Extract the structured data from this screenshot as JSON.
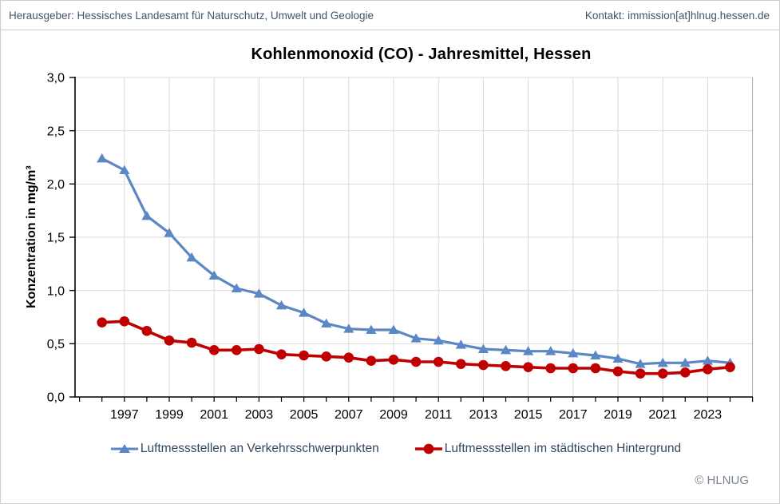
{
  "header": {
    "publisher": "Herausgeber: Hessisches Landesamt für Naturschutz, Umwelt und Geologie",
    "contact": "Kontakt: immission[at]hlnug.hessen.de"
  },
  "chart_data": {
    "type": "line",
    "title": "Kohlenmonoxid (CO) - Jahresmittel, Hessen",
    "xlabel": "",
    "ylabel": "Konzentration in mg/m³",
    "ylim": [
      0.0,
      3.0
    ],
    "ytick_step": 0.5,
    "ytick_labels": [
      "0,0",
      "0,5",
      "1,0",
      "1,5",
      "2,0",
      "2,5",
      "3,0"
    ],
    "x": [
      1996,
      1997,
      1998,
      1999,
      2000,
      2001,
      2002,
      2003,
      2004,
      2005,
      2006,
      2007,
      2008,
      2009,
      2010,
      2011,
      2012,
      2013,
      2014,
      2015,
      2016,
      2017,
      2018,
      2019,
      2020,
      2021,
      2022,
      2023,
      2024
    ],
    "xtick_labels": [
      "1997",
      "1999",
      "2001",
      "2003",
      "2005",
      "2007",
      "2009",
      "2011",
      "2013",
      "2015",
      "2017",
      "2019",
      "2021",
      "2023"
    ],
    "grid": "major horizontal every 0.5, vertical every 2 years",
    "legend_position": "bottom",
    "series": [
      {
        "name": "Luftmessstellen an Verkehrsschwerpunkten",
        "marker": "triangle",
        "color": "#5B87C5",
        "values": [
          2.24,
          2.13,
          1.7,
          1.54,
          1.31,
          1.14,
          1.02,
          0.97,
          0.86,
          0.79,
          0.69,
          0.64,
          0.63,
          0.63,
          0.55,
          0.53,
          0.49,
          0.45,
          0.44,
          0.43,
          0.43,
          0.41,
          0.39,
          0.36,
          0.31,
          0.32,
          0.32,
          0.34,
          0.32
        ]
      },
      {
        "name": "Luftmessstellen im städtischen Hintergrund",
        "marker": "circle",
        "color": "#C00000",
        "values": [
          0.7,
          0.71,
          0.62,
          0.53,
          0.51,
          0.44,
          0.44,
          0.45,
          0.4,
          0.39,
          0.38,
          0.37,
          0.34,
          0.35,
          0.33,
          0.33,
          0.31,
          0.3,
          0.29,
          0.28,
          0.27,
          0.27,
          0.27,
          0.24,
          0.22,
          0.22,
          0.23,
          0.26,
          0.28
        ]
      }
    ]
  },
  "footer": {
    "copyright": "© HLNUG"
  },
  "colors": {
    "traffic_series": "#5B87C5",
    "background_series": "#C00000",
    "gridline": "#D9D9D9",
    "axis": "#000000",
    "header_text": "#44546A",
    "legend_text": "#33475F",
    "footer_text": "#78838F"
  }
}
